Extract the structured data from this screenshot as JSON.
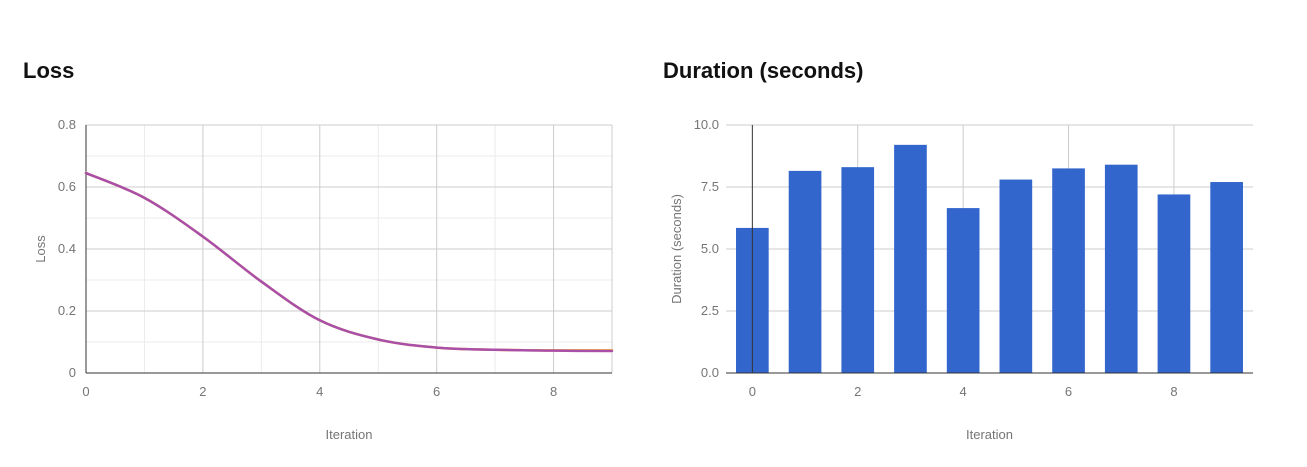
{
  "charts": {
    "loss": {
      "title": "Loss"
    },
    "duration": {
      "title": "Duration (seconds)"
    }
  },
  "chart_data": [
    {
      "type": "line",
      "title": "Loss",
      "xlabel": "Iteration",
      "ylabel": "Loss",
      "xlim": [
        0,
        9
      ],
      "ylim": [
        0,
        0.8
      ],
      "xticks": [
        0,
        2,
        4,
        6,
        8
      ],
      "yticks": [
        0,
        0.2,
        0.4,
        0.6,
        0.8
      ],
      "ytick_labels": [
        "0",
        "0.2",
        "0.4",
        "0.6",
        "0.8"
      ],
      "grid": true,
      "x": [
        0,
        1,
        2,
        3,
        4,
        5,
        6,
        7,
        8,
        9
      ],
      "series": [
        {
          "color": "#f5a623",
          "values": [
            0.645,
            0.565,
            0.44,
            0.295,
            0.17,
            0.108,
            0.082,
            0.075,
            0.073,
            0.073
          ]
        },
        {
          "color": "#a94fa9",
          "values": [
            0.645,
            0.565,
            0.44,
            0.295,
            0.17,
            0.108,
            0.082,
            0.075,
            0.072,
            0.071
          ]
        }
      ]
    },
    {
      "type": "bar",
      "title": "Duration (seconds)",
      "xlabel": "Iteration",
      "ylabel": "Duration (seconds)",
      "xlim": [
        -0.5,
        9.5
      ],
      "ylim": [
        0,
        10
      ],
      "xticks": [
        0,
        2,
        4,
        6,
        8
      ],
      "yticks": [
        0,
        2.5,
        5,
        7.5,
        10
      ],
      "ytick_labels": [
        "0.0",
        "2.5",
        "5.0",
        "7.5",
        "10.0"
      ],
      "grid": true,
      "categories": [
        0,
        1,
        2,
        3,
        4,
        5,
        6,
        7,
        8,
        9
      ],
      "values": [
        5.85,
        8.15,
        8.3,
        9.2,
        6.65,
        7.8,
        8.25,
        8.4,
        7.2,
        7.7
      ],
      "color": "#3366cc"
    }
  ]
}
